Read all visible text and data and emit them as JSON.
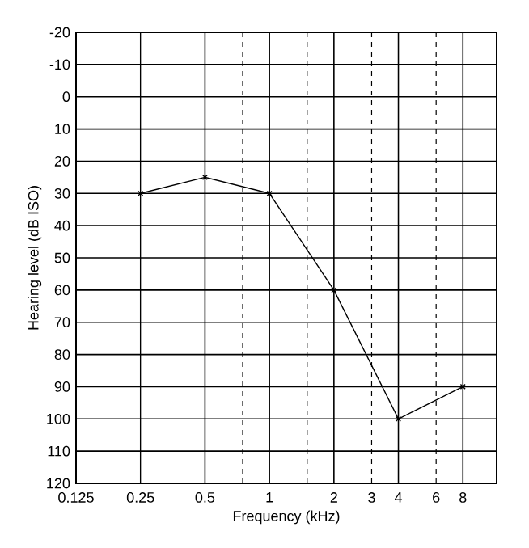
{
  "chart_data": {
    "type": "line",
    "xlabel": "Frequency (kHz)",
    "ylabel": "Hearing level (dB ISO)",
    "x": [
      0.25,
      0.5,
      1,
      2,
      4,
      8
    ],
    "series": [
      {
        "color": "#000000",
        "values": [
          30,
          25,
          30,
          60,
          100,
          90
        ]
      }
    ],
    "log": "x",
    "marker": "cross",
    "line_style": "solid",
    "grid": "y",
    "xlim": [
      0.125,
      11.5
    ],
    "xticks": [
      0.125,
      0.25,
      0.5,
      1,
      2,
      3,
      4,
      6,
      8
    ],
    "ylim": [
      120,
      -20
    ],
    "yticks": [
      -20,
      -10,
      0,
      10,
      20,
      30,
      40,
      50,
      60,
      70,
      80,
      90,
      100,
      110,
      120
    ],
    "ref_lines": [
      {
        "axis": "x",
        "value": 0.25,
        "line_style": "solid"
      },
      {
        "axis": "x",
        "value": 0.5,
        "line_style": "solid"
      },
      {
        "axis": "x",
        "value": 1,
        "line_style": "solid"
      },
      {
        "axis": "x",
        "value": 2,
        "line_style": "solid"
      },
      {
        "axis": "x",
        "value": 4,
        "line_style": "solid"
      },
      {
        "axis": "x",
        "value": 8,
        "line_style": "solid"
      },
      {
        "axis": "x",
        "value": 0.75,
        "line_style": "dashed"
      },
      {
        "axis": "x",
        "value": 1.5,
        "line_style": "dashed"
      },
      {
        "axis": "x",
        "value": 3,
        "line_style": "dashed"
      },
      {
        "axis": "x",
        "value": 6,
        "line_style": "dashed"
      }
    ]
  }
}
